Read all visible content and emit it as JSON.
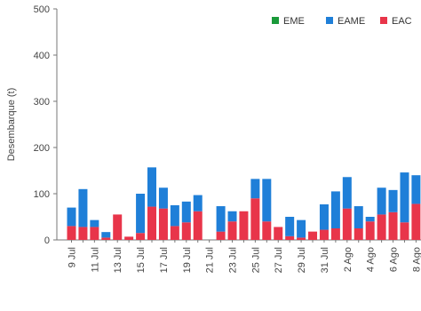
{
  "chart_data": {
    "type": "bar",
    "stacked": true,
    "ylabel": "Desembarque (t)",
    "xlabel": "",
    "ylim": [
      0,
      500
    ],
    "yticks": [
      0,
      100,
      200,
      300,
      400,
      500
    ],
    "grid": false,
    "legend_position": "top-right",
    "categories": [
      "9 Jul",
      "10 Jul",
      "11 Jul",
      "12 Jul",
      "13 Jul",
      "14 Jul",
      "15 Jul",
      "16 Jul",
      "17 Jul",
      "18 Jul",
      "19 Jul",
      "20 Jul",
      "21 Jul",
      "22 Jul",
      "23 Jul",
      "24 Jul",
      "25 Jul",
      "26 Jul",
      "27 Jul",
      "28 Jul",
      "29 Jul",
      "30 Jul",
      "31 Jul",
      "1 Ago",
      "2 Ago",
      "3 Ago",
      "4 Ago",
      "5 Ago",
      "6 Ago",
      "7 Ago",
      "8 Ago"
    ],
    "tick_labels": [
      "9 Jul",
      "",
      "11 Jul",
      "",
      "13 Jul",
      "",
      "15 Jul",
      "",
      "17 Jul",
      "",
      "19 Jul",
      "",
      "21 Jul",
      "",
      "23 Jul",
      "",
      "25 Jul",
      "",
      "27 Jul",
      "",
      "29 Jul",
      "",
      "31 Jul",
      "",
      "2 Ago",
      "",
      "4 Ago",
      "",
      "6 Ago",
      "",
      "8 Ago"
    ],
    "series": [
      {
        "name": "EAC",
        "color": "#e8354a",
        "values": [
          30,
          28,
          28,
          5,
          55,
          7,
          15,
          72,
          68,
          30,
          38,
          62,
          0,
          18,
          40,
          62,
          90,
          40,
          28,
          8,
          5,
          18,
          22,
          25,
          68,
          25,
          40,
          55,
          60,
          38,
          78
        ]
      },
      {
        "name": "EAME",
        "color": "#1f7fd8",
        "values": [
          40,
          82,
          15,
          12,
          0,
          0,
          85,
          85,
          45,
          45,
          45,
          35,
          0,
          55,
          22,
          0,
          42,
          92,
          0,
          42,
          38,
          0,
          55,
          80,
          68,
          48,
          10,
          58,
          48,
          108,
          62
        ]
      },
      {
        "name": "EME",
        "color": "#1a9a3a",
        "values": [
          0,
          0,
          0,
          0,
          0,
          0,
          0,
          0,
          0,
          0,
          0,
          0,
          0,
          0,
          0,
          0,
          0,
          0,
          0,
          0,
          0,
          0,
          0,
          0,
          0,
          0,
          0,
          0,
          0,
          0,
          0
        ]
      }
    ],
    "legend": [
      "EME",
      "EAME",
      "EAC"
    ]
  }
}
